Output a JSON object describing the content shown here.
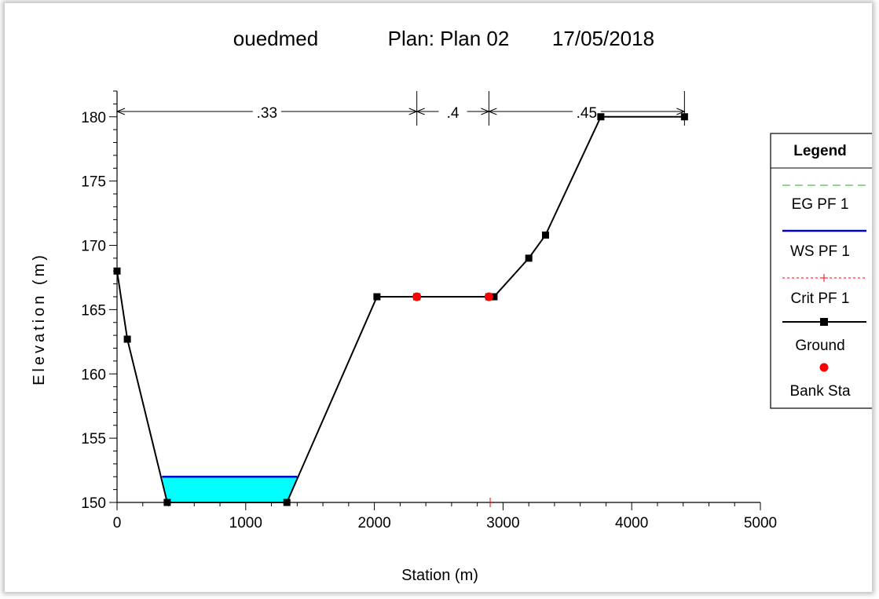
{
  "chart_data": {
    "type": "line",
    "title_parts": [
      "ouedmed",
      "Plan: Plan 02",
      "17/05/2018"
    ],
    "xlabel": "Station (m)",
    "ylabel": "Elevation (m)",
    "xlim": [
      0,
      5000
    ],
    "ylim": [
      150,
      182
    ],
    "xticks": [
      0,
      1000,
      2000,
      3000,
      4000,
      5000
    ],
    "yticks": [
      150,
      155,
      160,
      165,
      170,
      175,
      180
    ],
    "manning": [
      {
        "label": ".33",
        "from": 0,
        "to": 2330
      },
      {
        "label": ".4",
        "from": 2330,
        "to": 2890
      },
      {
        "label": ".45",
        "from": 2890,
        "to": 4410
      }
    ],
    "ground": {
      "x": [
        0,
        80,
        390,
        1320,
        2020,
        2330,
        2890,
        2930,
        3200,
        3330,
        3760,
        4410
      ],
      "y": [
        168,
        162.7,
        150,
        150,
        166,
        166,
        166,
        166,
        169,
        170.8,
        180,
        180
      ]
    },
    "bank_sta": {
      "x": [
        2330,
        2890
      ],
      "y": [
        166,
        166
      ]
    },
    "ws_pf1": {
      "elevation": 152,
      "x_left": 350,
      "x_right": 1400
    },
    "crit_pf1": {
      "x": 2900,
      "y": 150
    },
    "legend": {
      "title": "Legend",
      "items": [
        {
          "label": "EG PF 1",
          "kind": "eg",
          "color": "#22aa22"
        },
        {
          "label": "WS PF 1",
          "kind": "ws",
          "color": "#0000cc"
        },
        {
          "label": "Crit PF 1",
          "kind": "crit",
          "color": "#ff0000"
        },
        {
          "label": "Ground",
          "kind": "ground",
          "color": "#000000"
        },
        {
          "label": "Bank Sta",
          "kind": "bank",
          "color": "#ff0000"
        }
      ]
    },
    "colors": {
      "water_fill": "#00ffff",
      "ground": "#000000",
      "bank": "#ff0000",
      "ws": "#0000cc"
    }
  }
}
